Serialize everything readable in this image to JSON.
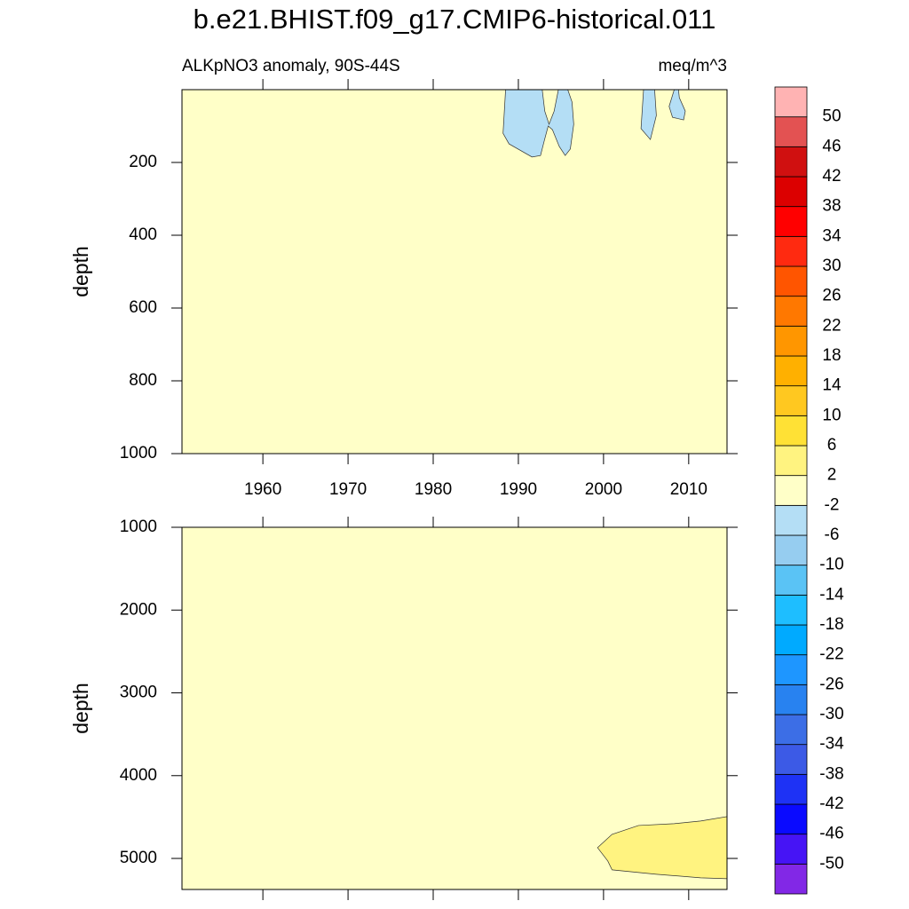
{
  "chart_data": {
    "type": "contour",
    "title": "b.e21.BHIST.f09_g17.CMIP6-historical.011",
    "left_label": "ALKpNO3 anomaly, 90S-44S",
    "right_label": "meq/m^3",
    "xlim": [
      1950.5,
      2014.5
    ],
    "xticks": [
      1960,
      1970,
      1980,
      1990,
      2000,
      2010
    ],
    "levels": [
      -50,
      -46,
      -42,
      -38,
      -34,
      -30,
      -26,
      -22,
      -18,
      -14,
      -10,
      -6,
      -2,
      2,
      6,
      10,
      14,
      18,
      22,
      26,
      30,
      34,
      38,
      42,
      46,
      50
    ],
    "colors": [
      "#8228E6",
      "#4614F5",
      "#0A0AFF",
      "#1E32F5",
      "#3C5AE6",
      "#3C6EE6",
      "#2882F0",
      "#1E96FF",
      "#00AAFF",
      "#1EBEFF",
      "#5AC3F5",
      "#96CDF0",
      "#B4DEF5",
      "#FFFFC8",
      "#FFF380",
      "#FFE135",
      "#FFC820",
      "#FFB000",
      "#FF9600",
      "#FF7800",
      "#FF5500",
      "#FF2A10",
      "#FF0000",
      "#DC0000",
      "#D01010",
      "#E35252",
      "#FFB3B3"
    ],
    "background_color": "#FFFFC8",
    "panels": [
      {
        "ylabel": "depth",
        "ylim": [
          0,
          1000
        ],
        "yticks": [
          200,
          400,
          600,
          800,
          1000
        ],
        "show_xtick_labels": true,
        "regions": [
          {
            "color": "#B4DEF5",
            "x": [
              1988.5,
              1988.2,
              1988.9,
              1991.6,
              1992.6,
              1993.0,
              1993.5,
              1994.0,
              1994.8,
              1995.5,
              1996.1,
              1996.5,
              1996.3,
              1995.8,
              1994.7,
              1994.2,
              1993.6,
              1993.1,
              1992.8
            ],
            "y": [
              0,
              120,
              149,
              185,
              181,
              144,
              100,
              110,
              156,
              181,
              163,
              95,
              34,
              0,
              0,
              59,
              95,
              59,
              0
            ]
          },
          {
            "color": "#B4DEF5",
            "x": [
              2004.7,
              2004.4,
              2005.5,
              2006.2,
              2006.0
            ],
            "y": [
              0,
              107,
              137,
              71,
              0
            ]
          },
          {
            "color": "#B4DEF5",
            "x": [
              2008.3,
              2007.7,
              2008.1,
              2009.4,
              2009.6,
              2008.9,
              2008.8
            ],
            "y": [
              0,
              46,
              76,
              83,
              59,
              22,
              0
            ]
          }
        ]
      },
      {
        "ylabel": "depth",
        "ylim": [
          1000,
          5375
        ],
        "yticks": [
          1000,
          2000,
          3000,
          4000,
          5000
        ],
        "show_xtick_labels": false,
        "regions": [
          {
            "color": "#FFF380",
            "x": [
              1999.3,
              2001.0,
              2004.1,
              2008.3,
              2011.4,
              2014.5,
              2014.5,
              2011.4,
              2006.2,
              2001.0,
              2000.5
            ],
            "y": [
              4870,
              4709,
              4602,
              4580,
              4548,
              4495,
              5245,
              5234,
              5191,
              5138,
              5031
            ]
          }
        ]
      }
    ]
  }
}
